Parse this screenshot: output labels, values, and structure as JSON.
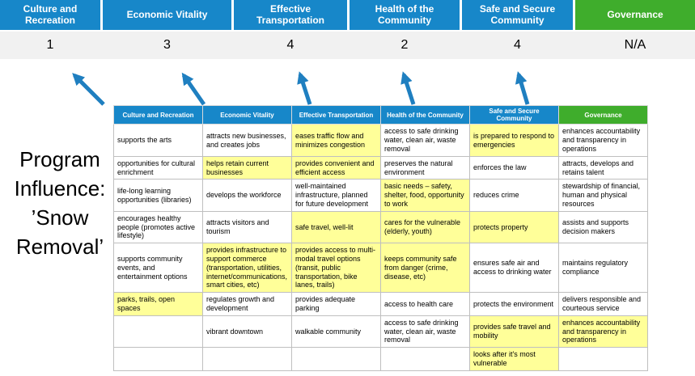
{
  "title": "Program Influence: ’Snow Removal’",
  "colors": {
    "blue": "#1787C9",
    "green": "#3FAD2C",
    "highlight": "#FFFF99",
    "score_bg": "#F1F1F1",
    "arrow": "#1F7FC0"
  },
  "banner": {
    "columns": [
      {
        "label": "Culture and Recreation",
        "score": "1",
        "theme": "blue"
      },
      {
        "label": "Economic Vitality",
        "score": "3",
        "theme": "blue"
      },
      {
        "label": "Effective Transportation",
        "score": "4",
        "theme": "blue"
      },
      {
        "label": "Health of the Community",
        "score": "2",
        "theme": "blue"
      },
      {
        "label": "Safe and Secure Community",
        "score": "4",
        "theme": "blue"
      },
      {
        "label": "Governance",
        "score": "N/A",
        "theme": "green"
      }
    ]
  },
  "table": {
    "headers": [
      {
        "label": "Culture and Recreation",
        "theme": "blue"
      },
      {
        "label": "Economic Vitality",
        "theme": "blue"
      },
      {
        "label": "Effective Transportation",
        "theme": "blue"
      },
      {
        "label": "Health of the Community",
        "theme": "blue"
      },
      {
        "label": "Safe and Secure Community",
        "theme": "blue"
      },
      {
        "label": "Governance",
        "theme": "green"
      }
    ],
    "rows": [
      {
        "cells": [
          {
            "text": "supports the arts",
            "highlight": false
          },
          {
            "text": "attracts new businesses, and creates jobs",
            "highlight": false
          },
          {
            "text": "eases traffic flow and minimizes congestion",
            "highlight": true
          },
          {
            "text": "access to safe drinking water, clean air, waste removal",
            "highlight": false
          },
          {
            "text": "is prepared to respond to emergencies",
            "highlight": true
          },
          {
            "text": "enhances accountability and transparency in operations",
            "highlight": false
          }
        ]
      },
      {
        "cells": [
          {
            "text": "opportunities for cultural enrichment",
            "highlight": false
          },
          {
            "text": "helps retain current businesses",
            "highlight": true
          },
          {
            "text": "provides convenient and efficient access",
            "highlight": true
          },
          {
            "text": "preserves the natural environment",
            "highlight": false
          },
          {
            "text": "enforces the law",
            "highlight": false
          },
          {
            "text": "attracts, develops and retains talent",
            "highlight": false
          }
        ]
      },
      {
        "cells": [
          {
            "text": "life-long learning opportunities (libraries)",
            "highlight": false
          },
          {
            "text": "develops the workforce",
            "highlight": false
          },
          {
            "text": "well-maintained infrastructure, planned for future development",
            "highlight": false
          },
          {
            "text": "basic needs – safety, shelter, food, opportunity to work",
            "highlight": true
          },
          {
            "text": "reduces crime",
            "highlight": false
          },
          {
            "text": "stewardship of financial, human and physical resources",
            "highlight": false
          }
        ]
      },
      {
        "cells": [
          {
            "text": "encourages healthy people (promotes active lifestyle)",
            "highlight": false
          },
          {
            "text": "attracts visitors and tourism",
            "highlight": false
          },
          {
            "text": "safe travel, well-lit",
            "highlight": true
          },
          {
            "text": "cares for the vulnerable (elderly, youth)",
            "highlight": true
          },
          {
            "text": "protects property",
            "highlight": true
          },
          {
            "text": "assists and supports decision makers",
            "highlight": false
          }
        ]
      },
      {
        "cells": [
          {
            "text": "supports community events, and entertainment options",
            "highlight": false
          },
          {
            "text": "provides infrastructure to support commerce (transportation, utilities, internet/communications, smart cities, etc)",
            "highlight": true
          },
          {
            "text": "provides access to multi-modal travel options (transit, public transportation, bike lanes, trails)",
            "highlight": true
          },
          {
            "text": "keeps community safe from danger (crime, disease, etc)",
            "highlight": true
          },
          {
            "text": "ensures safe air and access to drinking water",
            "highlight": false
          },
          {
            "text": "maintains regulatory compliance",
            "highlight": false
          }
        ]
      },
      {
        "cells": [
          {
            "text": "parks, trails, open spaces",
            "highlight": true
          },
          {
            "text": "regulates growth and development",
            "highlight": false
          },
          {
            "text": "provides adequate parking",
            "highlight": false
          },
          {
            "text": "access to health care",
            "highlight": false
          },
          {
            "text": "protects the environment",
            "highlight": false
          },
          {
            "text": "delivers responsible and courteous service",
            "highlight": false
          }
        ]
      },
      {
        "cells": [
          {
            "text": "",
            "highlight": false
          },
          {
            "text": "vibrant downtown",
            "highlight": false
          },
          {
            "text": "walkable community",
            "highlight": false
          },
          {
            "text": "access to safe drinking water, clean air, waste removal",
            "highlight": false
          },
          {
            "text": "provides safe travel and mobility",
            "highlight": true
          },
          {
            "text": "enhances accountability and transparency in operations",
            "highlight": true
          }
        ]
      },
      {
        "cells": [
          {
            "text": "",
            "highlight": false
          },
          {
            "text": "",
            "highlight": false
          },
          {
            "text": "",
            "highlight": false
          },
          {
            "text": "",
            "highlight": false
          },
          {
            "text": "looks after it's most vulnerable",
            "highlight": true
          },
          {
            "text": "",
            "highlight": false
          }
        ]
      }
    ]
  }
}
